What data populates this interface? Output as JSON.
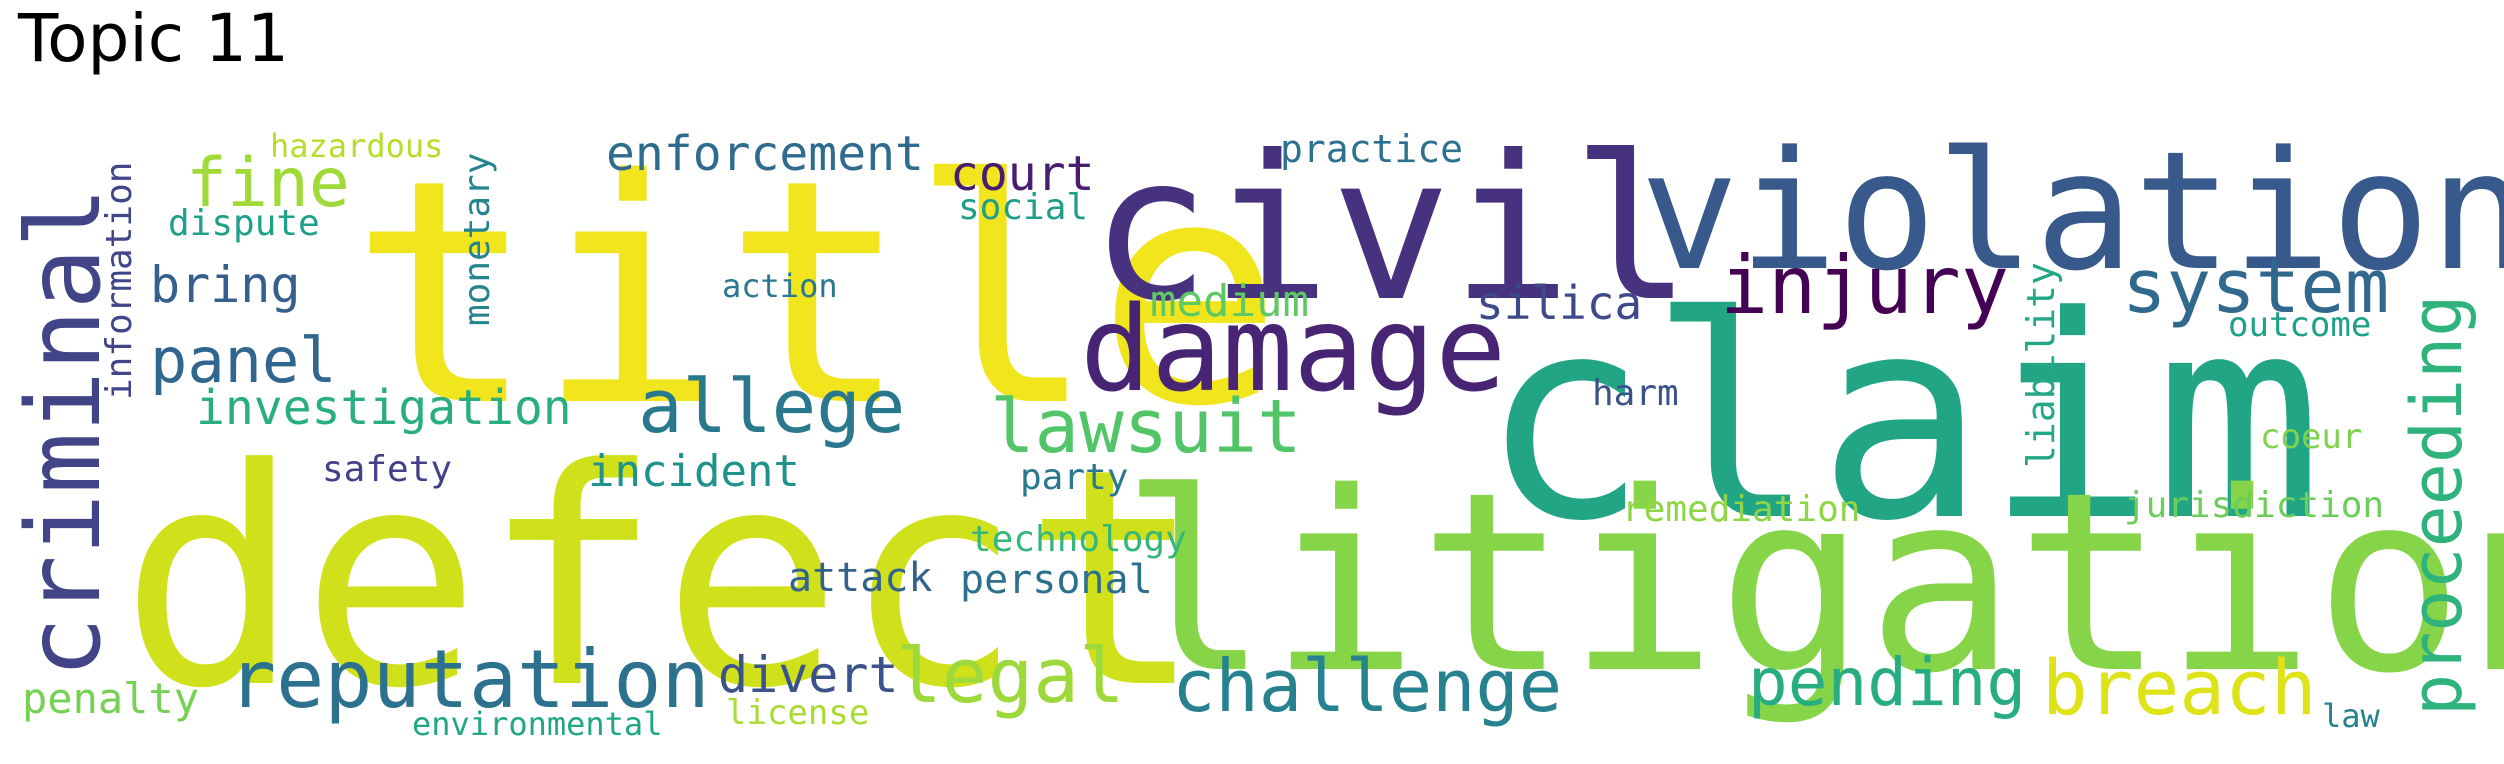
{
  "title": "Topic 11",
  "words": [
    {
      "text": "title",
      "color": "#f1e51d"
    },
    {
      "text": "defect",
      "color": "#d0e11c"
    },
    {
      "text": "civil",
      "color": "#46327e"
    },
    {
      "text": "violation",
      "color": "#38598c"
    },
    {
      "text": "claim",
      "color": "#21a585"
    },
    {
      "text": "litigation",
      "color": "#86d549"
    },
    {
      "text": "damage",
      "color": "#482475"
    },
    {
      "text": "criminal",
      "color": "#414487"
    },
    {
      "text": "injury",
      "color": "#440154"
    },
    {
      "text": "system",
      "color": "#31688e"
    },
    {
      "text": "proceeding",
      "color": "#2eb37c"
    },
    {
      "text": "allege",
      "color": "#2a788e"
    },
    {
      "text": "lawsuit",
      "color": "#52c569"
    },
    {
      "text": "reputation",
      "color": "#2c728e"
    },
    {
      "text": "challenge",
      "color": "#26828e"
    },
    {
      "text": "pending",
      "color": "#27ad81"
    },
    {
      "text": "breach",
      "color": "#dde318"
    },
    {
      "text": "legal",
      "color": "#9dd93b"
    },
    {
      "text": "fine",
      "color": "#a0da39"
    },
    {
      "text": "panel",
      "color": "#31678e"
    },
    {
      "text": "enforcement",
      "color": "#2f6b8e"
    },
    {
      "text": "court",
      "color": "#481d6f"
    },
    {
      "text": "bring",
      "color": "#355f8d"
    },
    {
      "text": "investigation",
      "color": "#29af7f"
    },
    {
      "text": "incident",
      "color": "#20928c"
    },
    {
      "text": "medium",
      "color": "#5ec962"
    },
    {
      "text": "silica",
      "color": "#3e4989"
    },
    {
      "text": "divert",
      "color": "#3b528b"
    },
    {
      "text": "personal",
      "color": "#2d708e"
    },
    {
      "text": "attack",
      "color": "#33638d"
    },
    {
      "text": "penalty",
      "color": "#75d054"
    },
    {
      "text": "safety",
      "color": "#424086"
    },
    {
      "text": "party",
      "color": "#2a788e"
    },
    {
      "text": "technology",
      "color": "#35b779"
    },
    {
      "text": "social",
      "color": "#1f9e89"
    },
    {
      "text": "practice",
      "color": "#2c728e"
    },
    {
      "text": "harm",
      "color": "#3b528b"
    },
    {
      "text": "outcome",
      "color": "#1fa088"
    },
    {
      "text": "liability",
      "color": "#22a884"
    },
    {
      "text": "coeur",
      "color": "#7fd34e"
    },
    {
      "text": "jurisdiction",
      "color": "#6ccd5a"
    },
    {
      "text": "remediation",
      "color": "#8ed645"
    },
    {
      "text": "law",
      "color": "#26828e"
    },
    {
      "text": "hazardous",
      "color": "#b5de2b"
    },
    {
      "text": "dispute",
      "color": "#1fa088"
    },
    {
      "text": "information",
      "color": "#404688"
    },
    {
      "text": "monetary",
      "color": "#25848e"
    },
    {
      "text": "action",
      "color": "#2a788e"
    },
    {
      "text": "license",
      "color": "#a8db34"
    },
    {
      "text": "environmental",
      "color": "#22a785"
    }
  ]
}
